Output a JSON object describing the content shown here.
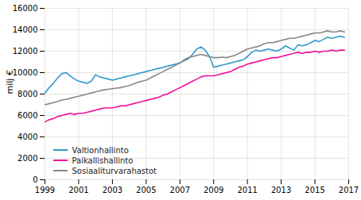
{
  "chart_data": {
    "type": "line",
    "ylabel": "milj €",
    "x": [
      1999,
      1999.25,
      1999.5,
      1999.75,
      2000,
      2000.25,
      2000.5,
      2000.75,
      2001,
      2001.25,
      2001.5,
      2001.75,
      2002,
      2002.25,
      2002.5,
      2002.75,
      2003,
      2003.25,
      2003.5,
      2003.75,
      2004,
      2004.25,
      2004.5,
      2004.75,
      2005,
      2005.25,
      2005.5,
      2005.75,
      2006,
      2006.25,
      2006.5,
      2006.75,
      2007,
      2007.25,
      2007.5,
      2007.75,
      2008,
      2008.25,
      2008.5,
      2008.75,
      2009,
      2009.25,
      2009.5,
      2009.75,
      2010,
      2010.25,
      2010.5,
      2010.75,
      2011,
      2011.25,
      2011.5,
      2011.75,
      2012,
      2012.25,
      2012.5,
      2012.75,
      2013,
      2013.25,
      2013.5,
      2013.75,
      2014,
      2014.25,
      2014.5,
      2014.75,
      2015,
      2015.25,
      2015.5,
      2015.75,
      2016,
      2016.25,
      2016.5,
      2016.75
    ],
    "series": [
      {
        "name": "Valtionhallinto",
        "color": "#3399cc",
        "values": [
          8100,
          8600,
          9000,
          9500,
          9900,
          10000,
          9700,
          9400,
          9200,
          9100,
          9000,
          9200,
          9800,
          9600,
          9500,
          9400,
          9300,
          9400,
          9500,
          9600,
          9700,
          9800,
          9900,
          10000,
          10100,
          10200,
          10300,
          10400,
          10500,
          10600,
          10700,
          10800,
          10900,
          11100,
          11300,
          11700,
          12200,
          12400,
          12100,
          11500,
          10500,
          10600,
          10700,
          10800,
          10900,
          11000,
          11100,
          11200,
          11500,
          11900,
          12100,
          12000,
          12100,
          12200,
          12100,
          12000,
          12200,
          12500,
          12300,
          12100,
          12600,
          12500,
          12600,
          12800,
          13000,
          12900,
          13100,
          13300,
          13200,
          13300,
          13400,
          13300
        ]
      },
      {
        "name": "Paikallishallinto",
        "color": "#ee1199",
        "values": [
          5400,
          5600,
          5700,
          5900,
          6000,
          6100,
          6200,
          6100,
          6200,
          6200,
          6300,
          6400,
          6500,
          6600,
          6700,
          6700,
          6700,
          6800,
          6900,
          6900,
          7000,
          7100,
          7200,
          7300,
          7400,
          7500,
          7600,
          7700,
          7900,
          8000,
          8200,
          8400,
          8600,
          8800,
          9000,
          9200,
          9400,
          9600,
          9700,
          9700,
          9700,
          9800,
          9900,
          10000,
          10100,
          10300,
          10500,
          10600,
          10800,
          10900,
          11000,
          11100,
          11200,
          11300,
          11400,
          11400,
          11500,
          11600,
          11700,
          11800,
          11900,
          11800,
          11900,
          11900,
          12000,
          11900,
          12000,
          12000,
          12100,
          12000,
          12100,
          12100
        ]
      },
      {
        "name": "Sosiaaliturvarahastot",
        "color": "#888888",
        "values": [
          7000,
          7100,
          7200,
          7300,
          7450,
          7500,
          7600,
          7700,
          7800,
          7900,
          8000,
          8100,
          8200,
          8300,
          8400,
          8450,
          8500,
          8550,
          8600,
          8700,
          8800,
          8950,
          9100,
          9200,
          9300,
          9500,
          9700,
          9900,
          10100,
          10300,
          10500,
          10700,
          10900,
          11200,
          11400,
          11500,
          11600,
          11700,
          11600,
          11500,
          11400,
          11400,
          11450,
          11400,
          11500,
          11600,
          11800,
          12000,
          12200,
          12300,
          12400,
          12500,
          12700,
          12800,
          12800,
          12900,
          13000,
          13100,
          13200,
          13200,
          13300,
          13400,
          13500,
          13600,
          13700,
          13700,
          13800,
          13900,
          13800,
          13800,
          13900,
          13800
        ]
      }
    ],
    "xlim": [
      1999,
      2017
    ],
    "ylim": [
      0,
      16000
    ],
    "xticks": [
      1999,
      2001,
      2003,
      2005,
      2007,
      2009,
      2011,
      2013,
      2015,
      2017
    ],
    "yticks": [
      0,
      2000,
      4000,
      6000,
      8000,
      10000,
      12000,
      14000,
      16000
    ],
    "grid": true,
    "legend": "lower left"
  }
}
